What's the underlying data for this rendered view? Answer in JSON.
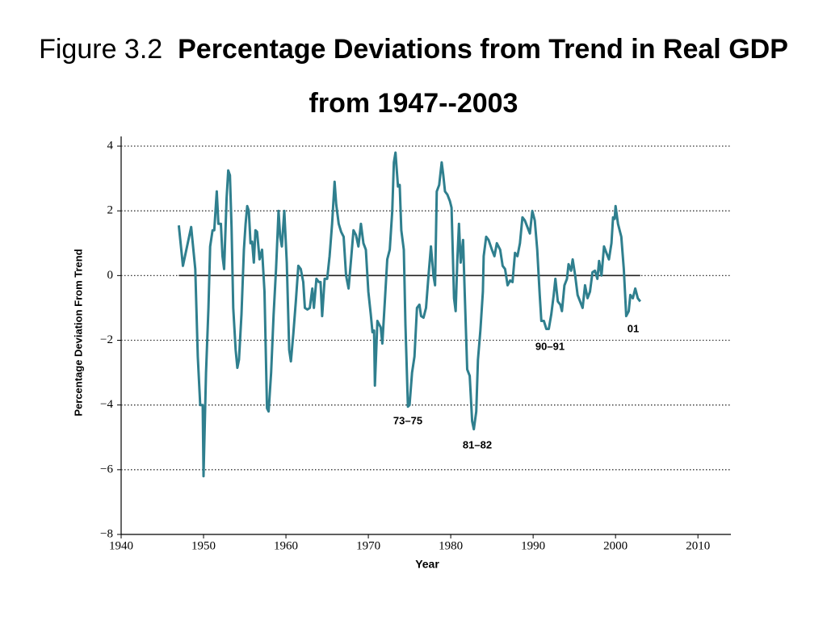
{
  "chart_data": {
    "type": "line",
    "title_prefix": "Figure 3.2",
    "title": "Percentage Deviations from Trend in Real GDP from 1947--2003",
    "y_label": "Percentage Deviation From Trend",
    "x_label": "Year",
    "annotations": [
      "73–75",
      "81–82",
      "90–91",
      "01"
    ],
    "x": [
      1947.0,
      1947.5,
      1948.0,
      1948.5,
      1949.0,
      1949.3,
      1949.6,
      1949.9,
      1950.0,
      1950.3,
      1950.6,
      1950.8,
      1951.1,
      1951.3,
      1951.6,
      1951.8,
      1952.1,
      1952.3,
      1952.5,
      1952.8,
      1953.0,
      1953.2,
      1953.4,
      1953.6,
      1953.9,
      1954.1,
      1954.3,
      1954.6,
      1954.9,
      1955.1,
      1955.3,
      1955.5,
      1955.7,
      1955.9,
      1956.1,
      1956.3,
      1956.5,
      1956.8,
      1957.1,
      1957.4,
      1957.7,
      1957.9,
      1958.2,
      1958.5,
      1958.8,
      1959.1,
      1959.3,
      1959.5,
      1959.8,
      1960.1,
      1960.4,
      1960.6,
      1960.9,
      1961.2,
      1961.5,
      1961.8,
      1962.1,
      1962.3,
      1962.6,
      1962.9,
      1963.2,
      1963.4,
      1963.7,
      1964.0,
      1964.2,
      1964.4,
      1964.7,
      1965.0,
      1965.3,
      1965.6,
      1965.9,
      1966.1,
      1966.4,
      1966.7,
      1967.0,
      1967.3,
      1967.6,
      1967.9,
      1968.2,
      1968.5,
      1968.8,
      1969.1,
      1969.4,
      1969.7,
      1970.0,
      1970.3,
      1970.5,
      1970.7,
      1970.8,
      1971.1,
      1971.3,
      1971.5,
      1971.7,
      1972.0,
      1972.3,
      1972.6,
      1972.9,
      1973.1,
      1973.3,
      1973.6,
      1973.8,
      1974.0,
      1974.3,
      1974.5,
      1974.8,
      1975.0,
      1975.3,
      1975.6,
      1975.9,
      1976.2,
      1976.4,
      1976.7,
      1977.0,
      1977.3,
      1977.6,
      1977.9,
      1978.1,
      1978.3,
      1978.6,
      1978.9,
      1979.1,
      1979.3,
      1979.6,
      1979.9,
      1980.1,
      1980.4,
      1980.6,
      1980.8,
      1981.0,
      1981.2,
      1981.5,
      1981.7,
      1982.0,
      1982.3,
      1982.6,
      1982.8,
      1983.1,
      1983.3,
      1983.6,
      1983.9,
      1984.0,
      1984.3,
      1984.6,
      1985.0,
      1985.3,
      1985.6,
      1986.0,
      1986.3,
      1986.6,
      1986.9,
      1987.2,
      1987.5,
      1987.8,
      1988.1,
      1988.4,
      1988.7,
      1989.0,
      1989.3,
      1989.6,
      1989.9,
      1990.2,
      1990.5,
      1990.8,
      1991.0,
      1991.3,
      1991.6,
      1991.9,
      1992.2,
      1992.5,
      1992.7,
      1993.0,
      1993.3,
      1993.5,
      1993.8,
      1994.1,
      1994.3,
      1994.6,
      1994.8,
      1995.1,
      1995.4,
      1995.7,
      1996.0,
      1996.3,
      1996.6,
      1996.9,
      1997.2,
      1997.5,
      1997.8,
      1998.0,
      1998.3,
      1998.6,
      1998.9,
      1999.2,
      1999.5,
      1999.7,
      1999.9,
      2000.0,
      2000.3,
      2000.7,
      2001.0,
      2001.3,
      2001.6,
      2001.8,
      2002.1,
      2002.4,
      2002.7,
      2003.0
    ],
    "series": [
      {
        "name": "Real GDP",
        "color": "#2f7f8e",
        "values": [
          1.55,
          0.3,
          0.9,
          1.5,
          0.2,
          -2.5,
          -4.0,
          -4.0,
          -6.2,
          -3.0,
          -1.0,
          0.9,
          1.4,
          1.4,
          2.6,
          1.6,
          1.6,
          0.6,
          0.2,
          2.4,
          3.25,
          3.1,
          1.5,
          -1.0,
          -2.3,
          -2.85,
          -2.6,
          -1.2,
          0.8,
          1.6,
          2.15,
          2.0,
          1.0,
          1.05,
          0.4,
          1.4,
          1.35,
          0.5,
          0.8,
          -0.5,
          -4.1,
          -4.2,
          -3.0,
          -1.2,
          0.2,
          2.0,
          1.2,
          0.9,
          2.0,
          0.4,
          -2.3,
          -2.65,
          -1.8,
          -0.8,
          0.3,
          0.2,
          -0.2,
          -1.0,
          -1.05,
          -1.0,
          -0.4,
          -1.0,
          -0.1,
          -0.2,
          -0.2,
          -1.25,
          -0.1,
          -0.1,
          0.6,
          1.6,
          2.9,
          2.2,
          1.6,
          1.35,
          1.2,
          0.0,
          -0.4,
          0.5,
          1.4,
          1.25,
          0.9,
          1.6,
          1.0,
          0.8,
          -0.5,
          -1.2,
          -1.75,
          -1.7,
          -3.4,
          -1.4,
          -1.5,
          -1.6,
          -2.1,
          -0.8,
          0.5,
          0.8,
          2.0,
          3.5,
          3.8,
          2.75,
          2.8,
          1.4,
          0.8,
          -1.5,
          -4.05,
          -4.0,
          -3.0,
          -2.5,
          -1.0,
          -0.9,
          -1.25,
          -1.3,
          -1.0,
          0.0,
          0.9,
          0.0,
          -0.3,
          2.6,
          2.8,
          3.5,
          3.1,
          2.6,
          2.5,
          2.3,
          2.1,
          -0.7,
          -1.1,
          0.5,
          1.6,
          0.4,
          1.1,
          -0.6,
          -2.9,
          -3.1,
          -4.5,
          -4.75,
          -4.2,
          -2.6,
          -1.7,
          -0.5,
          0.6,
          1.2,
          1.1,
          0.8,
          0.6,
          1.0,
          0.8,
          0.3,
          0.2,
          -0.3,
          -0.15,
          -0.2,
          0.7,
          0.6,
          1.0,
          1.8,
          1.7,
          1.5,
          1.3,
          2.0,
          1.7,
          0.8,
          -0.6,
          -1.4,
          -1.4,
          -1.65,
          -1.65,
          -1.2,
          -0.6,
          -0.1,
          -0.8,
          -0.9,
          -1.1,
          -0.3,
          -0.1,
          0.35,
          0.15,
          0.5,
          0.0,
          -0.6,
          -0.8,
          -1.0,
          -0.3,
          -0.7,
          -0.5,
          0.1,
          0.15,
          -0.1,
          0.45,
          0.0,
          0.9,
          0.7,
          0.5,
          1.0,
          1.8,
          1.75,
          2.15,
          1.6,
          1.2,
          0.2,
          -1.25,
          -1.1,
          -0.6,
          -0.7,
          -0.4,
          -0.7,
          -0.8
        ]
      }
    ],
    "xlim": [
      1940,
      2014
    ],
    "xticks": [
      1940,
      1950,
      1960,
      1970,
      1980,
      1990,
      2000,
      2010
    ],
    "ylim": [
      -8,
      4.3
    ],
    "yticks": [
      {
        "value": -8,
        "label": "−8"
      },
      {
        "value": -6,
        "label": "−6"
      },
      {
        "value": -4,
        "label": "−4"
      },
      {
        "value": -2,
        "label": "−2"
      },
      0,
      2,
      4
    ],
    "grid": true
  }
}
